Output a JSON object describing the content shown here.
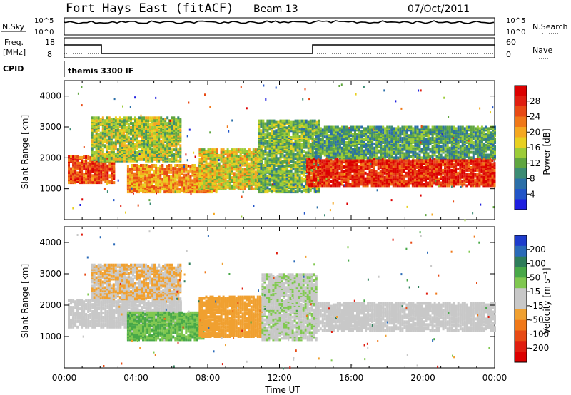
{
  "header": {
    "title": "Fort Hays East (fitACF)",
    "beam": "Beam 13",
    "date": "07/Oct/2011"
  },
  "top_strips": {
    "nsky_label": "N.Sky",
    "nsky_ticks": [
      "10^5",
      "10^0"
    ],
    "nsky_right_ticks": [
      "10^5",
      "10^0"
    ],
    "nsearch_label": "N.Search",
    "freq_label_1": "Freq.",
    "freq_label_2": "[MHz]",
    "freq_ticks": [
      "18",
      "8"
    ],
    "nave_ticks": [
      "60",
      "0"
    ],
    "nave_label": "Nave",
    "cpid_label": "CPID",
    "cpid_value": "themis 3300 IF"
  },
  "chart_data": [
    {
      "type": "heatmap",
      "title": "",
      "quantity": "Power",
      "ylabel": "Slant Range [km]",
      "ylim": [
        0,
        4500
      ],
      "yticks": [
        "1000",
        "2000",
        "3000",
        "4000"
      ],
      "colorbar": {
        "label": "Power [dB]",
        "ticks": [
          "4",
          "8",
          "12",
          "16",
          "20",
          "24",
          "28"
        ],
        "colors": [
          "#1f1fe0",
          "#2255c8",
          "#2b6fa8",
          "#3c8c74",
          "#60a640",
          "#9ccc38",
          "#e8d020",
          "#f5a820",
          "#f07818",
          "#e84a14",
          "#e01e10",
          "#dc0000"
        ]
      },
      "bands": [
        {
          "t0": 0.2,
          "t1": 2.8,
          "r0": 1200,
          "r1": 2100,
          "value": 24
        },
        {
          "t0": 1.5,
          "t1": 6.5,
          "r0": 1900,
          "r1": 3300,
          "value": 14
        },
        {
          "t0": 3.5,
          "t1": 8.5,
          "r0": 900,
          "r1": 1800,
          "value": 20
        },
        {
          "t0": 7.5,
          "t1": 11.0,
          "r0": 1000,
          "r1": 2300,
          "value": 16
        },
        {
          "t0": 10.8,
          "t1": 14.2,
          "r0": 900,
          "r1": 3200,
          "value": 12
        },
        {
          "t0": 13.5,
          "t1": 24.0,
          "r0": 1100,
          "r1": 2000,
          "value": 26
        },
        {
          "t0": 14.0,
          "t1": 24.0,
          "r0": 2000,
          "r1": 3000,
          "value": 10
        }
      ]
    },
    {
      "type": "heatmap",
      "title": "",
      "quantity": "Velocity",
      "ylabel": "Slant Range [km]",
      "ylim": [
        0,
        4500
      ],
      "yticks": [
        "1000",
        "2000",
        "3000",
        "4000"
      ],
      "xlabel": "Time UT",
      "xticks": [
        "00:00",
        "04:00",
        "08:00",
        "12:00",
        "16:00",
        "20:00",
        "00:00"
      ],
      "xlim": [
        0,
        24
      ],
      "colorbar": {
        "label": "Velocity [m s⁻¹]",
        "ticks": [
          "200",
          "100",
          "50",
          "15",
          "-15",
          "-50",
          "-100",
          "-200"
        ],
        "colors": [
          "#1e3ccc",
          "#2a6ab8",
          "#2e7d5a",
          "#48a848",
          "#80c850",
          "#c8c8c8",
          "#c8c8c8",
          "#f0a030",
          "#f07818",
          "#e84a14",
          "#e01e10",
          "#dc0000"
        ]
      },
      "bands": [
        {
          "t0": 0.2,
          "t1": 6.5,
          "r0": 1300,
          "r1": 2200,
          "value": 0
        },
        {
          "t0": 1.5,
          "t1": 6.5,
          "r0": 2200,
          "r1": 3300,
          "value": -40
        },
        {
          "t0": 3.5,
          "t1": 7.8,
          "r0": 900,
          "r1": 1800,
          "value": 80
        },
        {
          "t0": 7.5,
          "t1": 11.0,
          "r0": 1000,
          "r1": 2300,
          "value": -60
        },
        {
          "t0": 11.0,
          "t1": 14.0,
          "r0": 900,
          "r1": 3000,
          "value": 30
        },
        {
          "t0": 14.0,
          "t1": 24.0,
          "r0": 1200,
          "r1": 2100,
          "value": 0
        }
      ]
    }
  ]
}
